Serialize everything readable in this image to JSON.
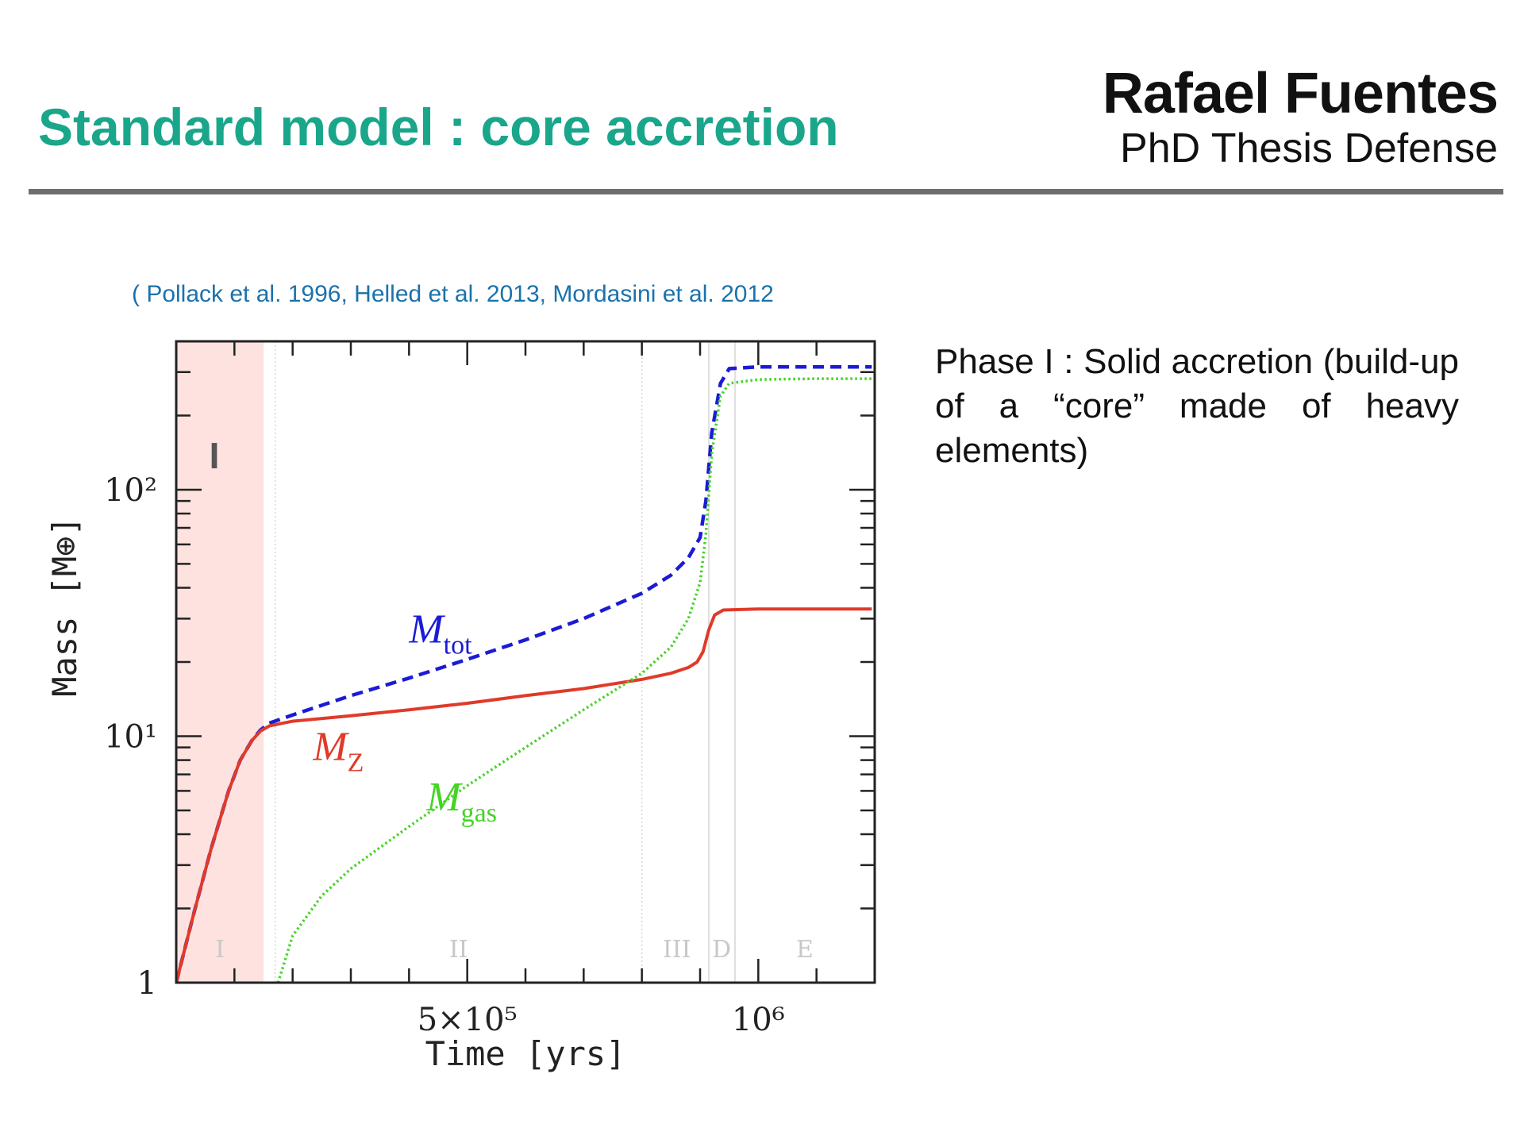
{
  "slide": {
    "title": "Standard model : core accretion",
    "author_name": "Rafael Fuentes",
    "author_subtitle": "PhD Thesis Defense",
    "citation": "( Pollack et al. 1996, Helled et al. 2013, Mordasini et al. 2012",
    "phase_description": "Phase I : Solid accretion (build-up of a “core” made of heavy elements)"
  },
  "chart_data": {
    "type": "line",
    "title": "",
    "xlabel": "Time [yrs]",
    "ylabel": "Mass [M⊕]",
    "x_units": "years",
    "y_scale": "log",
    "xlim": [
      0,
      1200000
    ],
    "ylim": [
      1,
      400
    ],
    "x_ticks": [
      {
        "value": 500000,
        "label": "5×10⁵"
      },
      {
        "value": 1000000,
        "label": "10⁶"
      }
    ],
    "y_ticks": [
      {
        "value": 1,
        "label": "1"
      },
      {
        "value": 10,
        "label": "10¹"
      },
      {
        "value": 100,
        "label": "10²"
      }
    ],
    "highlight": {
      "label": "I",
      "x_range": [
        0,
        150000
      ],
      "color": "#fde2df"
    },
    "phase_boundaries": [
      170000,
      800000,
      915000,
      960000
    ],
    "phase_labels": [
      {
        "label": "I",
        "x": 75000
      },
      {
        "label": "II",
        "x": 485000
      },
      {
        "label": "III",
        "x": 860000
      },
      {
        "label": "D",
        "x": 937000
      },
      {
        "label": "E",
        "x": 1080000
      }
    ],
    "series": [
      {
        "name": "Mtot",
        "label_main": "M",
        "label_sub": "tot",
        "color": "#1b1bd6",
        "style": "dashed",
        "label_at": [
          400000,
          24
        ],
        "points": [
          [
            0,
            1
          ],
          [
            30000,
            1.9
          ],
          [
            60000,
            3.5
          ],
          [
            90000,
            6.0
          ],
          [
            110000,
            8.0
          ],
          [
            130000,
            9.6
          ],
          [
            145000,
            10.6
          ],
          [
            160000,
            11.3
          ],
          [
            200000,
            12.2
          ],
          [
            300000,
            14.6
          ],
          [
            400000,
            17.2
          ],
          [
            500000,
            20.5
          ],
          [
            600000,
            24.6
          ],
          [
            700000,
            30.0
          ],
          [
            800000,
            38.0
          ],
          [
            850000,
            45.0
          ],
          [
            880000,
            53.0
          ],
          [
            900000,
            64.0
          ],
          [
            910000,
            90.0
          ],
          [
            920000,
            170.0
          ],
          [
            935000,
            270.0
          ],
          [
            950000,
            310.0
          ],
          [
            1000000,
            315.0
          ],
          [
            1100000,
            315.0
          ],
          [
            1195000,
            315.0
          ]
        ]
      },
      {
        "name": "MZ",
        "label_main": "M",
        "label_sub": "Z",
        "color": "#e03a2a",
        "style": "solid",
        "label_at": [
          235000,
          8.0
        ],
        "points": [
          [
            0,
            1
          ],
          [
            30000,
            1.9
          ],
          [
            60000,
            3.5
          ],
          [
            90000,
            6.0
          ],
          [
            110000,
            8.0
          ],
          [
            130000,
            9.6
          ],
          [
            145000,
            10.5
          ],
          [
            160000,
            11.0
          ],
          [
            200000,
            11.5
          ],
          [
            300000,
            12.1
          ],
          [
            400000,
            12.8
          ],
          [
            500000,
            13.6
          ],
          [
            600000,
            14.6
          ],
          [
            700000,
            15.6
          ],
          [
            800000,
            17.0
          ],
          [
            850000,
            18.0
          ],
          [
            880000,
            19.0
          ],
          [
            895000,
            20.0
          ],
          [
            905000,
            22.0
          ],
          [
            915000,
            27.0
          ],
          [
            925000,
            31.0
          ],
          [
            940000,
            32.5
          ],
          [
            1000000,
            32.8
          ],
          [
            1100000,
            32.8
          ],
          [
            1195000,
            32.8
          ]
        ]
      },
      {
        "name": "Mgas",
        "label_main": "M",
        "label_sub": "gas",
        "color": "#44d424",
        "style": "dotted",
        "label_at": [
          430000,
          5.0
        ],
        "points": [
          [
            175000,
            1.0
          ],
          [
            200000,
            1.55
          ],
          [
            250000,
            2.25
          ],
          [
            300000,
            2.9
          ],
          [
            400000,
            4.3
          ],
          [
            500000,
            6.3
          ],
          [
            600000,
            9.0
          ],
          [
            700000,
            12.8
          ],
          [
            800000,
            18.0
          ],
          [
            850000,
            23.0
          ],
          [
            880000,
            30.0
          ],
          [
            900000,
            42.0
          ],
          [
            910000,
            66.0
          ],
          [
            920000,
            140.0
          ],
          [
            935000,
            240.0
          ],
          [
            950000,
            270.0
          ],
          [
            1000000,
            280.0
          ],
          [
            1100000,
            282.0
          ],
          [
            1195000,
            282.0
          ]
        ]
      }
    ]
  }
}
